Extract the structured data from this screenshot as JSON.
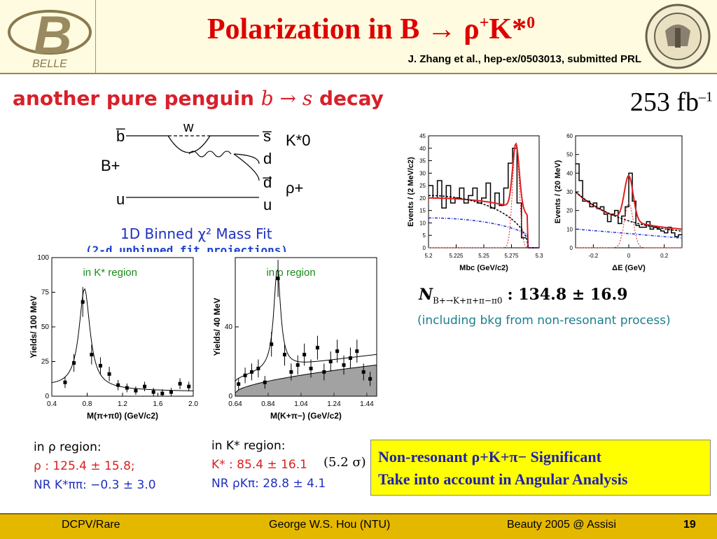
{
  "header": {
    "title_main": "Polarization in B → ρ",
    "title_sup1": "+",
    "title_k": "K*",
    "title_sup2": "0",
    "reference": "J. Zhang et al., hep-ex/0503013, submitted PRL",
    "logo_text": "BELLE"
  },
  "subtitle": {
    "text_a": "another pure penguin ",
    "math": "b → s",
    "text_b": " decay"
  },
  "luminosity": {
    "value": "253 fb",
    "exp": "–1"
  },
  "feynman": {
    "labels": [
      "b̅",
      "w",
      "s̅",
      "K*0",
      "B+",
      "d",
      "d̅",
      "ρ+",
      "u",
      "u"
    ]
  },
  "fit": {
    "title": "1D Binned χ² Mass Fit",
    "subtitle": "(2-d unbinned fit projections)"
  },
  "chart_data": [
    {
      "type": "scatter",
      "annotation": "in K* region",
      "xlabel": "M(π+π0) (GeV/c2)",
      "ylabel": "Yields/ 100 MeV",
      "xlim": [
        0.4,
        2.0
      ],
      "ylim": [
        0,
        100
      ],
      "xticks": [
        "0.4",
        "0.8",
        "1.2",
        "1.6",
        "2.0"
      ],
      "yticks": [
        "0",
        "25",
        "50",
        "75",
        "100"
      ],
      "x": [
        0.55,
        0.65,
        0.75,
        0.85,
        0.95,
        1.05,
        1.15,
        1.25,
        1.35,
        1.45,
        1.55,
        1.65,
        1.75,
        1.85,
        1.95
      ],
      "y": [
        10,
        24,
        68,
        30,
        22,
        16,
        8,
        6,
        4,
        7,
        3,
        2,
        3,
        9,
        7
      ],
      "curve": "fit"
    },
    {
      "type": "scatter",
      "annotation": "in ρ region",
      "xlabel": "M(K+π−) (GeV/c2)",
      "ylabel": "Yields/ 40 MeV",
      "xlim": [
        0.64,
        1.5
      ],
      "ylim": [
        0,
        80
      ],
      "xticks": [
        "0.64",
        "0.84",
        "1.04",
        "1.24",
        "1.44"
      ],
      "yticks": [
        "0",
        "40"
      ],
      "x": [
        0.66,
        0.7,
        0.74,
        0.78,
        0.82,
        0.86,
        0.9,
        0.94,
        0.98,
        1.02,
        1.06,
        1.1,
        1.14,
        1.18,
        1.22,
        1.26,
        1.3,
        1.34,
        1.38,
        1.42,
        1.46
      ],
      "y": [
        7,
        12,
        14,
        16,
        8,
        30,
        68,
        24,
        14,
        18,
        24,
        16,
        28,
        14,
        20,
        26,
        18,
        22,
        26,
        14,
        10
      ],
      "curve": "fit",
      "shaded": "background"
    },
    {
      "type": "line",
      "xlabel": "Mbc (GeV/c2)",
      "ylabel": "Events / (2 MeV/c2)",
      "xlim": [
        5.2,
        5.3
      ],
      "ylim": [
        0,
        45
      ],
      "xticks": [
        "5.2",
        "5.225",
        "5.25",
        "5.275",
        "5.3"
      ],
      "yticks": [
        "0",
        "5",
        "10",
        "15",
        "20",
        "25",
        "30",
        "35",
        "40",
        "45"
      ],
      "x": [
        5.202,
        5.206,
        5.21,
        5.214,
        5.218,
        5.222,
        5.226,
        5.23,
        5.234,
        5.238,
        5.242,
        5.246,
        5.25,
        5.254,
        5.258,
        5.262,
        5.266,
        5.27,
        5.274,
        5.278,
        5.282,
        5.286
      ],
      "y": [
        25,
        20,
        27,
        16,
        25,
        18,
        20,
        24,
        18,
        21,
        24,
        18,
        20,
        26,
        16,
        22,
        17,
        24,
        34,
        40,
        18,
        4
      ]
    },
    {
      "type": "line",
      "xlabel": "ΔE (GeV)",
      "ylabel": "Events / (20 MeV)",
      "xlim": [
        -0.3,
        0.3
      ],
      "ylim": [
        0,
        60
      ],
      "xticks": [
        "-0.2",
        "0",
        "0.2"
      ],
      "yticks": [
        "0",
        "10",
        "20",
        "30",
        "40",
        "50",
        "60"
      ],
      "x": [
        -0.29,
        -0.27,
        -0.25,
        -0.23,
        -0.21,
        -0.19,
        -0.17,
        -0.15,
        -0.13,
        -0.11,
        -0.09,
        -0.07,
        -0.05,
        -0.03,
        -0.01,
        0.01,
        0.03,
        0.05,
        0.07,
        0.09,
        0.11,
        0.13,
        0.15,
        0.17,
        0.19,
        0.21,
        0.23,
        0.25,
        0.27,
        0.29
      ],
      "y": [
        45,
        36,
        25,
        25,
        22,
        24,
        21,
        22,
        18,
        14,
        18,
        20,
        13,
        17,
        22,
        40,
        25,
        12,
        11,
        11,
        14,
        10,
        11,
        10,
        9,
        8,
        11,
        8,
        6,
        7
      ]
    }
  ],
  "nsig": {
    "label": "N",
    "sub": "B+→K+π+π−π0",
    "value": ":  134.8 ± 16.9"
  },
  "nsig_note": "(including bkg from non-resonant process)",
  "left_region": {
    "head": "in ρ region:",
    "line1": "ρ : 125.4 ± 15.8;",
    "line2": "NR K*ππ:  −0.3 ± 3.0"
  },
  "right_region": {
    "head": "in K* region:",
    "line1": "K* : 85.4 ± 16.1",
    "line2": "NR ρKπ:  28.8 ± 4.1",
    "significance": "(5.2 σ)"
  },
  "callout": {
    "line1": "Non-resonant ρ+K+π− Significant",
    "line2": "Take into account in Angular Analysis"
  },
  "footer": {
    "left": "DCPV/Rare",
    "middle": "George W.S. Hou (NTU)",
    "right": "Beauty 2005 @ Assisi",
    "page": "19"
  },
  "colors": {
    "title": "#dd0000",
    "header_bg": "#fffbe0",
    "footer_bg": "#e5b800",
    "callout_bg": "#ffff00",
    "callout_text": "#2020b0"
  }
}
